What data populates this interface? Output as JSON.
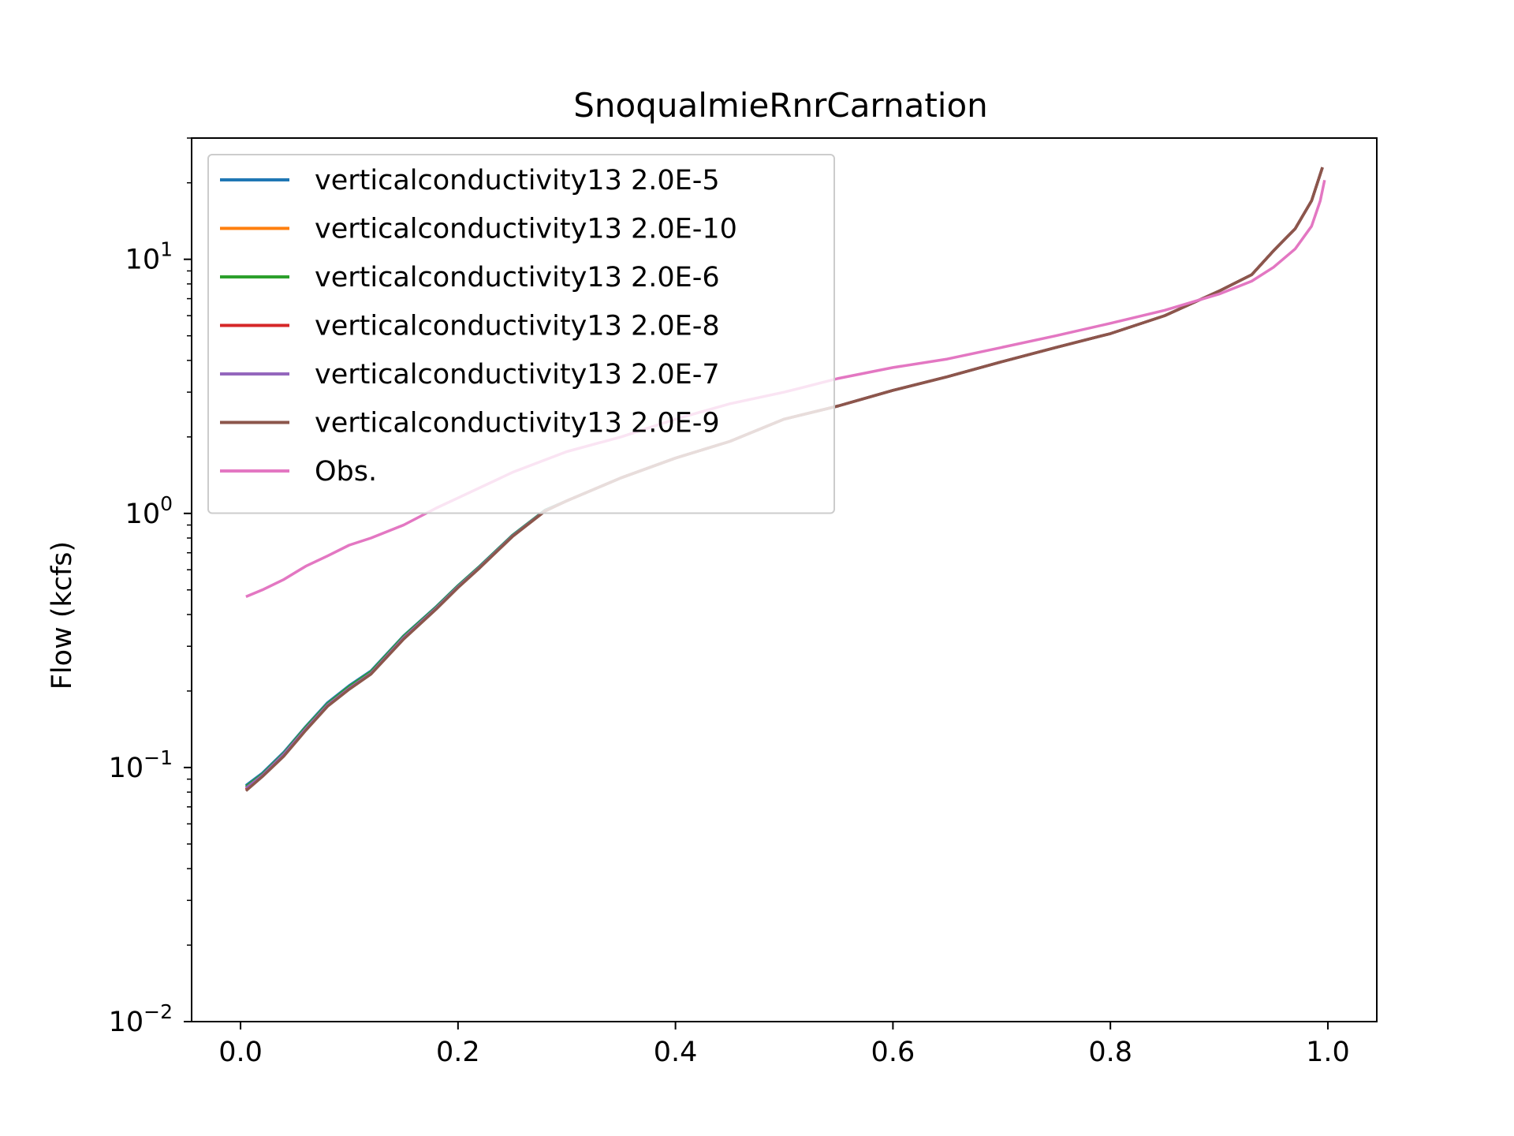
{
  "chart_data": {
    "type": "line",
    "title": "SnoqualmieRnrCarnation",
    "xlabel": "",
    "ylabel": "Flow (kcfs)",
    "xlim": [
      -0.045,
      1.045
    ],
    "ylim": [
      0.01,
      30
    ],
    "yscale": "log",
    "grid": false,
    "legend_position": "upper-left",
    "x_ticks": [
      {
        "value": 0.0,
        "label": "0.0"
      },
      {
        "value": 0.2,
        "label": "0.2"
      },
      {
        "value": 0.4,
        "label": "0.4"
      },
      {
        "value": 0.6,
        "label": "0.6"
      },
      {
        "value": 0.8,
        "label": "0.8"
      },
      {
        "value": 1.0,
        "label": "1.0"
      }
    ],
    "y_ticks": [
      {
        "value": 0.01,
        "base": "10",
        "exp": "−2"
      },
      {
        "value": 0.1,
        "base": "10",
        "exp": "−1"
      },
      {
        "value": 1,
        "base": "10",
        "exp": "0"
      },
      {
        "value": 10,
        "base": "10",
        "exp": "1"
      }
    ],
    "series": [
      {
        "name": "verticalconductivity13 2.0E-5",
        "color": "#1f77b4",
        "points": [
          [
            0.005,
            0.085
          ],
          [
            0.02,
            0.095
          ],
          [
            0.04,
            0.115
          ],
          [
            0.06,
            0.145
          ],
          [
            0.08,
            0.18
          ],
          [
            0.1,
            0.21
          ],
          [
            0.12,
            0.24
          ],
          [
            0.15,
            0.33
          ],
          [
            0.18,
            0.43
          ],
          [
            0.2,
            0.52
          ],
          [
            0.22,
            0.62
          ],
          [
            0.25,
            0.82
          ],
          [
            0.28,
            1.03
          ],
          [
            0.3,
            1.12
          ],
          [
            0.35,
            1.38
          ],
          [
            0.4,
            1.65
          ],
          [
            0.45,
            1.92
          ],
          [
            0.5,
            2.35
          ],
          [
            0.55,
            2.65
          ],
          [
            0.6,
            3.05
          ],
          [
            0.65,
            3.45
          ],
          [
            0.7,
            3.95
          ],
          [
            0.75,
            4.5
          ],
          [
            0.8,
            5.1
          ],
          [
            0.85,
            6.0
          ],
          [
            0.9,
            7.5
          ],
          [
            0.93,
            8.7
          ],
          [
            0.95,
            10.8
          ],
          [
            0.97,
            13.2
          ],
          [
            0.985,
            17.0
          ],
          [
            0.995,
            23.0
          ]
        ]
      },
      {
        "name": "verticalconductivity13 2.0E-10",
        "color": "#ff7f0e",
        "points": [
          [
            0.005,
            0.082
          ],
          [
            0.02,
            0.093
          ],
          [
            0.04,
            0.113
          ],
          [
            0.06,
            0.142
          ],
          [
            0.08,
            0.176
          ],
          [
            0.1,
            0.205
          ],
          [
            0.12,
            0.235
          ],
          [
            0.15,
            0.325
          ],
          [
            0.18,
            0.425
          ],
          [
            0.2,
            0.515
          ],
          [
            0.22,
            0.615
          ],
          [
            0.25,
            0.815
          ],
          [
            0.28,
            1.025
          ],
          [
            0.3,
            1.12
          ],
          [
            0.35,
            1.38
          ],
          [
            0.4,
            1.65
          ],
          [
            0.45,
            1.92
          ],
          [
            0.5,
            2.35
          ],
          [
            0.55,
            2.65
          ],
          [
            0.6,
            3.05
          ],
          [
            0.65,
            3.45
          ],
          [
            0.7,
            3.95
          ],
          [
            0.75,
            4.5
          ],
          [
            0.8,
            5.1
          ],
          [
            0.85,
            6.0
          ],
          [
            0.9,
            7.5
          ],
          [
            0.93,
            8.7
          ],
          [
            0.95,
            10.8
          ],
          [
            0.97,
            13.2
          ],
          [
            0.985,
            17.0
          ],
          [
            0.995,
            23.0
          ]
        ]
      },
      {
        "name": "verticalconductivity13 2.0E-6",
        "color": "#2ca02c",
        "points": [
          [
            0.005,
            0.084
          ],
          [
            0.02,
            0.094
          ],
          [
            0.04,
            0.114
          ],
          [
            0.06,
            0.144
          ],
          [
            0.08,
            0.178
          ],
          [
            0.1,
            0.208
          ],
          [
            0.12,
            0.238
          ],
          [
            0.15,
            0.328
          ],
          [
            0.18,
            0.428
          ],
          [
            0.2,
            0.518
          ],
          [
            0.22,
            0.618
          ],
          [
            0.25,
            0.818
          ],
          [
            0.28,
            1.028
          ],
          [
            0.3,
            1.12
          ],
          [
            0.35,
            1.38
          ],
          [
            0.4,
            1.65
          ],
          [
            0.45,
            1.92
          ],
          [
            0.5,
            2.35
          ],
          [
            0.55,
            2.65
          ],
          [
            0.6,
            3.05
          ],
          [
            0.65,
            3.45
          ],
          [
            0.7,
            3.95
          ],
          [
            0.75,
            4.5
          ],
          [
            0.8,
            5.1
          ],
          [
            0.85,
            6.0
          ],
          [
            0.9,
            7.5
          ],
          [
            0.93,
            8.7
          ],
          [
            0.95,
            10.8
          ],
          [
            0.97,
            13.2
          ],
          [
            0.985,
            17.0
          ],
          [
            0.995,
            23.0
          ]
        ]
      },
      {
        "name": "verticalconductivity13 2.0E-8",
        "color": "#d62728",
        "points": [
          [
            0.005,
            0.082
          ],
          [
            0.02,
            0.093
          ],
          [
            0.04,
            0.112
          ],
          [
            0.06,
            0.141
          ],
          [
            0.08,
            0.175
          ],
          [
            0.1,
            0.204
          ],
          [
            0.12,
            0.234
          ],
          [
            0.15,
            0.322
          ],
          [
            0.18,
            0.422
          ],
          [
            0.2,
            0.512
          ],
          [
            0.22,
            0.612
          ],
          [
            0.25,
            0.812
          ],
          [
            0.28,
            1.022
          ],
          [
            0.3,
            1.12
          ],
          [
            0.35,
            1.38
          ],
          [
            0.4,
            1.65
          ],
          [
            0.45,
            1.92
          ],
          [
            0.5,
            2.35
          ],
          [
            0.55,
            2.65
          ],
          [
            0.6,
            3.05
          ],
          [
            0.65,
            3.45
          ],
          [
            0.7,
            3.95
          ],
          [
            0.75,
            4.5
          ],
          [
            0.8,
            5.1
          ],
          [
            0.85,
            6.0
          ],
          [
            0.9,
            7.5
          ],
          [
            0.93,
            8.7
          ],
          [
            0.95,
            10.8
          ],
          [
            0.97,
            13.2
          ],
          [
            0.985,
            17.0
          ],
          [
            0.995,
            23.0
          ]
        ]
      },
      {
        "name": "verticalconductivity13 2.0E-7",
        "color": "#9467bd",
        "points": [
          [
            0.005,
            0.083
          ],
          [
            0.02,
            0.093
          ],
          [
            0.04,
            0.113
          ],
          [
            0.06,
            0.142
          ],
          [
            0.08,
            0.176
          ],
          [
            0.1,
            0.205
          ],
          [
            0.12,
            0.235
          ],
          [
            0.15,
            0.324
          ],
          [
            0.18,
            0.424
          ],
          [
            0.2,
            0.514
          ],
          [
            0.22,
            0.614
          ],
          [
            0.25,
            0.814
          ],
          [
            0.28,
            1.024
          ],
          [
            0.3,
            1.12
          ],
          [
            0.35,
            1.38
          ],
          [
            0.4,
            1.65
          ],
          [
            0.45,
            1.92
          ],
          [
            0.5,
            2.35
          ],
          [
            0.55,
            2.65
          ],
          [
            0.6,
            3.05
          ],
          [
            0.65,
            3.45
          ],
          [
            0.7,
            3.95
          ],
          [
            0.75,
            4.5
          ],
          [
            0.8,
            5.1
          ],
          [
            0.85,
            6.0
          ],
          [
            0.9,
            7.5
          ],
          [
            0.93,
            8.7
          ],
          [
            0.95,
            10.8
          ],
          [
            0.97,
            13.2
          ],
          [
            0.985,
            17.0
          ],
          [
            0.995,
            23.0
          ]
        ]
      },
      {
        "name": "verticalconductivity13 2.0E-9",
        "color": "#8c564b",
        "points": [
          [
            0.005,
            0.081
          ],
          [
            0.02,
            0.092
          ],
          [
            0.04,
            0.111
          ],
          [
            0.06,
            0.14
          ],
          [
            0.08,
            0.174
          ],
          [
            0.1,
            0.203
          ],
          [
            0.12,
            0.233
          ],
          [
            0.15,
            0.32
          ],
          [
            0.18,
            0.42
          ],
          [
            0.2,
            0.51
          ],
          [
            0.22,
            0.61
          ],
          [
            0.25,
            0.81
          ],
          [
            0.28,
            1.02
          ],
          [
            0.3,
            1.12
          ],
          [
            0.35,
            1.38
          ],
          [
            0.4,
            1.65
          ],
          [
            0.45,
            1.92
          ],
          [
            0.5,
            2.35
          ],
          [
            0.55,
            2.65
          ],
          [
            0.6,
            3.05
          ],
          [
            0.65,
            3.45
          ],
          [
            0.7,
            3.95
          ],
          [
            0.75,
            4.5
          ],
          [
            0.8,
            5.1
          ],
          [
            0.85,
            6.0
          ],
          [
            0.9,
            7.5
          ],
          [
            0.93,
            8.7
          ],
          [
            0.95,
            10.8
          ],
          [
            0.97,
            13.2
          ],
          [
            0.985,
            17.0
          ],
          [
            0.995,
            23.0
          ]
        ]
      },
      {
        "name": "Obs.",
        "color": "#e377c2",
        "points": [
          [
            0.005,
            0.47
          ],
          [
            0.02,
            0.5
          ],
          [
            0.04,
            0.55
          ],
          [
            0.06,
            0.62
          ],
          [
            0.08,
            0.68
          ],
          [
            0.1,
            0.75
          ],
          [
            0.12,
            0.8
          ],
          [
            0.15,
            0.9
          ],
          [
            0.18,
            1.05
          ],
          [
            0.2,
            1.15
          ],
          [
            0.25,
            1.45
          ],
          [
            0.3,
            1.75
          ],
          [
            0.35,
            2.0
          ],
          [
            0.4,
            2.35
          ],
          [
            0.45,
            2.7
          ],
          [
            0.5,
            3.0
          ],
          [
            0.55,
            3.4
          ],
          [
            0.6,
            3.75
          ],
          [
            0.65,
            4.05
          ],
          [
            0.7,
            4.5
          ],
          [
            0.75,
            5.0
          ],
          [
            0.8,
            5.6
          ],
          [
            0.85,
            6.3
          ],
          [
            0.9,
            7.3
          ],
          [
            0.93,
            8.2
          ],
          [
            0.95,
            9.3
          ],
          [
            0.97,
            11.0
          ],
          [
            0.985,
            13.5
          ],
          [
            0.993,
            17.0
          ],
          [
            0.997,
            20.5
          ]
        ]
      }
    ]
  }
}
